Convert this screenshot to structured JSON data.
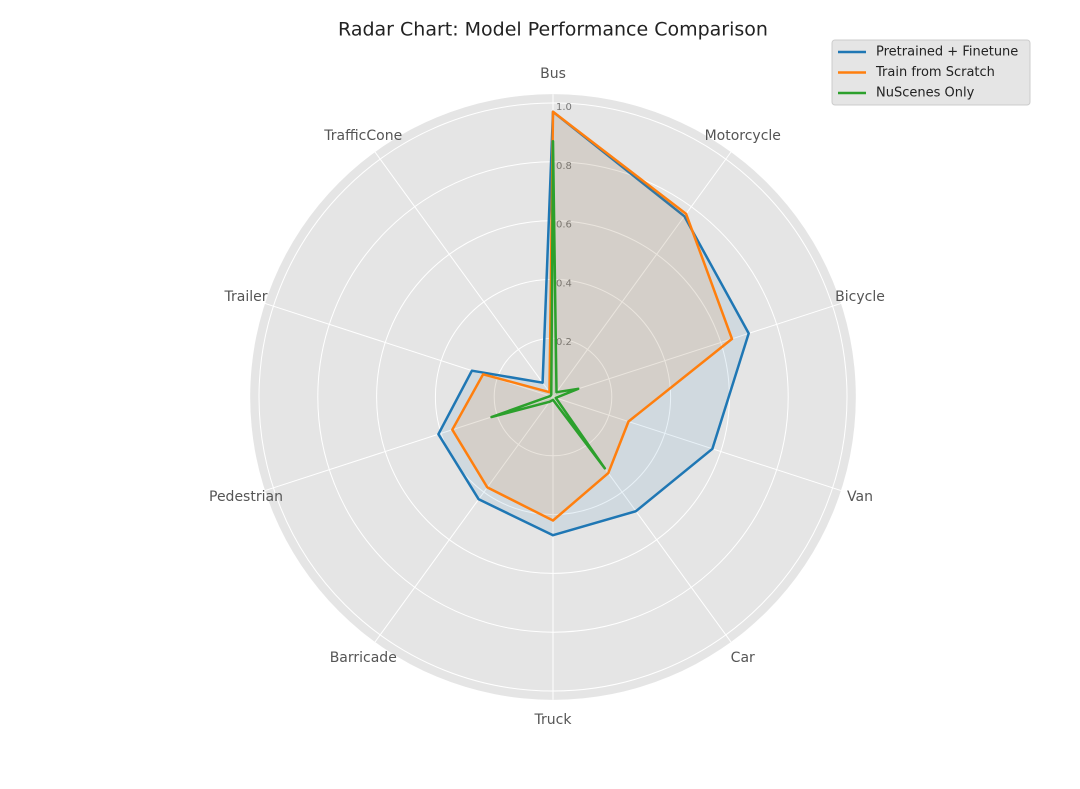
{
  "chart_data": {
    "type": "radar",
    "title": "Radar Chart: Model Performance Comparison",
    "categories": [
      "Bus",
      "Motorcycle",
      "Bicycle",
      "Van",
      "Car",
      "Truck",
      "Barricade",
      "Pedestrian",
      "Trailer",
      "TrafficCone"
    ],
    "series": [
      {
        "name": "Pretrained + Finetune",
        "color": "#1f77b4",
        "values": [
          0.97,
          0.76,
          0.7,
          0.57,
          0.48,
          0.47,
          0.43,
          0.41,
          0.29,
          0.06
        ]
      },
      {
        "name": "Train from Scratch",
        "color": "#ff7f0e",
        "values": [
          0.97,
          0.77,
          0.64,
          0.27,
          0.32,
          0.42,
          0.38,
          0.36,
          0.25,
          0.02
        ]
      },
      {
        "name": "NuScenes Only",
        "color": "#2ca02c",
        "values": [
          0.87,
          0.02,
          0.09,
          0.01,
          0.3,
          0.01,
          0.02,
          0.22,
          0.01,
          0.01
        ]
      }
    ],
    "ylim": [
      0,
      1.03
    ],
    "yticks": [
      0.2,
      0.4,
      0.6,
      0.8,
      {
        "value": 1,
        "label": "1.0"
      }
    ],
    "grid": true,
    "legend": "upper right"
  }
}
